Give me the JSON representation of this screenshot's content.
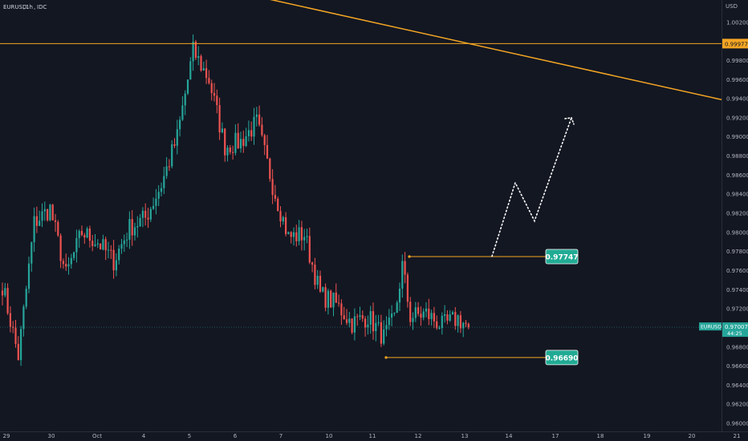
{
  "header": {
    "symbol": "EURUSD",
    "interval": "1h",
    "source": "IDC"
  },
  "chart_data": {
    "type": "candlestick",
    "currency": "USD",
    "ylim": [
      0.9595,
      1.004
    ],
    "y_ticks": [
      "1.00200",
      "0.99800",
      "0.99600",
      "0.99400",
      "0.99200",
      "0.99000",
      "0.98800",
      "0.98600",
      "0.98400",
      "0.98200",
      "0.98000",
      "0.97800",
      "0.97600",
      "0.97400",
      "0.97200",
      "0.96800",
      "0.96600",
      "0.96400",
      "0.96200",
      "0.96000"
    ],
    "x_ticks": [
      "29",
      "30",
      "Oct",
      "4",
      "5",
      "6",
      "7",
      "10",
      "11",
      "12",
      "13",
      "14",
      "17",
      "18",
      "19",
      "20",
      "21"
    ],
    "anchors": [
      {
        "i": 0,
        "p": 0.9745
      },
      {
        "i": 6,
        "p": 0.967
      },
      {
        "i": 12,
        "p": 0.981
      },
      {
        "i": 18,
        "p": 0.9825
      },
      {
        "i": 24,
        "p": 0.9755
      },
      {
        "i": 30,
        "p": 0.98
      },
      {
        "i": 36,
        "p": 0.979
      },
      {
        "i": 42,
        "p": 0.977
      },
      {
        "i": 48,
        "p": 0.9805
      },
      {
        "i": 54,
        "p": 0.9815
      },
      {
        "i": 60,
        "p": 0.985
      },
      {
        "i": 66,
        "p": 0.99
      },
      {
        "i": 72,
        "p": 0.999
      },
      {
        "i": 78,
        "p": 0.996
      },
      {
        "i": 84,
        "p": 0.989
      },
      {
        "i": 90,
        "p": 0.9895
      },
      {
        "i": 96,
        "p": 0.9915
      },
      {
        "i": 102,
        "p": 0.985
      },
      {
        "i": 108,
        "p": 0.9795
      },
      {
        "i": 114,
        "p": 0.9798
      },
      {
        "i": 120,
        "p": 0.9735
      },
      {
        "i": 126,
        "p": 0.9725
      },
      {
        "i": 132,
        "p": 0.9705
      },
      {
        "i": 138,
        "p": 0.9712
      },
      {
        "i": 144,
        "p": 0.969
      },
      {
        "i": 148,
        "p": 0.971
      },
      {
        "i": 151,
        "p": 0.9765
      },
      {
        "i": 154,
        "p": 0.9712
      },
      {
        "i": 160,
        "p": 0.9715
      },
      {
        "i": 166,
        "p": 0.9702
      },
      {
        "i": 172,
        "p": 0.971
      },
      {
        "i": 176,
        "p": 0.97007
      }
    ],
    "current_price": {
      "symbol": "EURUSD",
      "price": "0.97007",
      "countdown": "44:25"
    },
    "price_labels": [
      {
        "name": "resistance",
        "value": "0.97747"
      },
      {
        "name": "support",
        "value": "0.96690"
      }
    ],
    "horizontal_line_label": "0.99977",
    "trendline": {
      "from_price": 1.0075,
      "to_price": 0.9939
    },
    "projection_path": [
      0.9775,
      0.9852,
      0.9812,
      0.992
    ]
  },
  "colors": {
    "background": "#131722",
    "up": "#26a69a",
    "down": "#ef5350",
    "drawing": "#f5a623",
    "price_label_bg": "#22ab94",
    "axis_text": "#b2b5be"
  }
}
